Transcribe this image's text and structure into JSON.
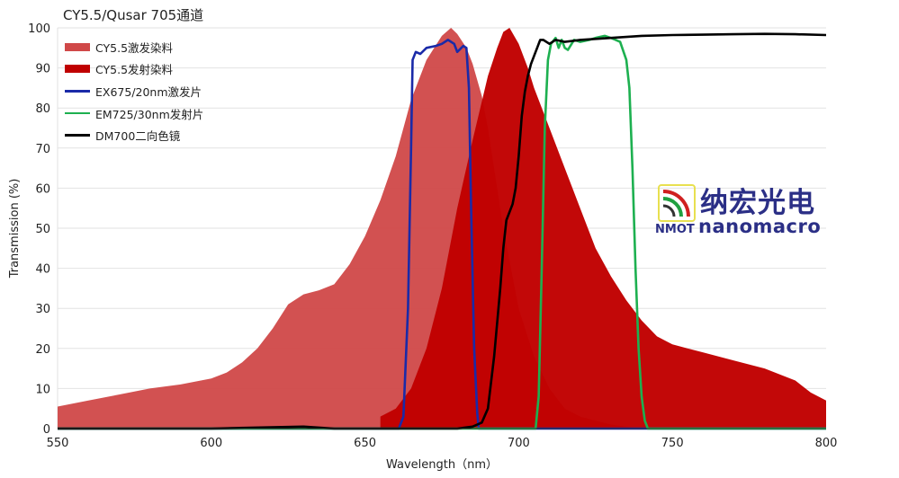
{
  "chart_data": {
    "type": "area",
    "title": "CY5.5/Qusar 705通道",
    "xlabel": "Wavelength（nm）",
    "ylabel": "Transmission (%)",
    "xlim": [
      550,
      800
    ],
    "ylim": [
      0,
      100
    ],
    "xticks": [
      550,
      600,
      650,
      700,
      750,
      800
    ],
    "yticks": [
      0,
      10,
      20,
      30,
      40,
      50,
      60,
      70,
      80,
      90,
      100
    ],
    "grid": "horizontal",
    "legend_position": "top-left",
    "series": [
      {
        "name": "CY5.5激发染料",
        "kind": "area",
        "color": "#d04848",
        "x": [
          550,
          560,
          570,
          580,
          590,
          600,
          605,
          610,
          615,
          620,
          625,
          630,
          635,
          640,
          645,
          650,
          655,
          660,
          665,
          670,
          675,
          678,
          680,
          683,
          685,
          688,
          690,
          693,
          695,
          698,
          700,
          705,
          710,
          715,
          720,
          730,
          740
        ],
        "y": [
          5.5,
          7,
          8.5,
          10,
          11,
          12.5,
          14,
          16.5,
          20,
          25,
          31,
          33.5,
          34.5,
          36,
          41,
          48,
          57,
          68,
          82,
          92,
          98,
          100,
          98.5,
          95,
          91,
          83,
          75,
          60,
          50,
          38,
          30,
          18,
          10,
          5,
          3,
          1,
          0
        ]
      },
      {
        "name": "CY5.5发射染料",
        "kind": "area",
        "color": "#c00000",
        "x": [
          655,
          660,
          665,
          670,
          675,
          680,
          685,
          690,
          693,
          695,
          697,
          700,
          703,
          705,
          710,
          715,
          720,
          725,
          730,
          735,
          740,
          745,
          750,
          760,
          770,
          780,
          790,
          795,
          800
        ],
        "y": [
          3,
          5,
          10,
          20,
          35,
          55,
          72,
          88,
          95,
          99,
          100,
          96,
          90,
          85,
          75,
          65,
          55,
          45,
          38,
          32,
          27,
          23,
          21,
          19,
          17,
          15,
          12,
          9,
          7
        ]
      },
      {
        "name": "EX675/20nm激发片",
        "kind": "line",
        "color": "#1a2aa8",
        "x": [
          550,
          661,
          662.5,
          664,
          665,
          665.5,
          666.5,
          668,
          670,
          673,
          675,
          677,
          679,
          680,
          682,
          683,
          683.8,
          684.5,
          685.5,
          686.5,
          687,
          800
        ],
        "y": [
          0,
          0,
          3,
          30,
          70,
          92,
          94,
          93.5,
          95,
          95.5,
          96,
          97,
          96,
          94,
          95.5,
          95,
          85,
          55,
          20,
          4,
          0,
          0
        ]
      },
      {
        "name": "EM725/30nm发射片",
        "kind": "line",
        "color": "#1db050",
        "x": [
          550,
          705.5,
          706.5,
          707.5,
          708.5,
          709.5,
          710.5,
          712,
          713,
          714,
          715,
          716,
          718,
          720,
          723,
          725,
          728,
          730,
          733,
          735,
          736,
          737,
          738,
          739,
          740,
          741,
          742,
          800
        ],
        "y": [
          0,
          0,
          8,
          40,
          75,
          92,
          96,
          97.5,
          95,
          97,
          95,
          94.5,
          97,
          96.5,
          97,
          97.5,
          98,
          97.5,
          96.5,
          92,
          85,
          65,
          40,
          20,
          8,
          2,
          0,
          0
        ]
      },
      {
        "name": "DM700二向色镜",
        "kind": "line",
        "color": "#000000",
        "x": [
          550,
          600,
          630,
          640,
          680,
          685,
          688,
          690,
          692,
          694,
          695,
          696,
          698,
          699,
          700,
          701,
          702,
          703,
          704,
          705,
          706,
          707,
          708,
          710,
          712,
          715,
          720,
          730,
          740,
          750,
          760,
          770,
          780,
          790,
          800
        ],
        "y": [
          0,
          0,
          0.5,
          0,
          0,
          0.5,
          1.5,
          5,
          18,
          35,
          45,
          52,
          56,
          60,
          68,
          78,
          84,
          88,
          91,
          93,
          95,
          97,
          97,
          96,
          97,
          96.5,
          97,
          97.5,
          98,
          98.2,
          98.3,
          98.4,
          98.5,
          98.4,
          98.2
        ]
      }
    ]
  },
  "logo": {
    "cn": "纳宏光电",
    "abbr": "NMOT",
    "en": "nanomacro"
  }
}
